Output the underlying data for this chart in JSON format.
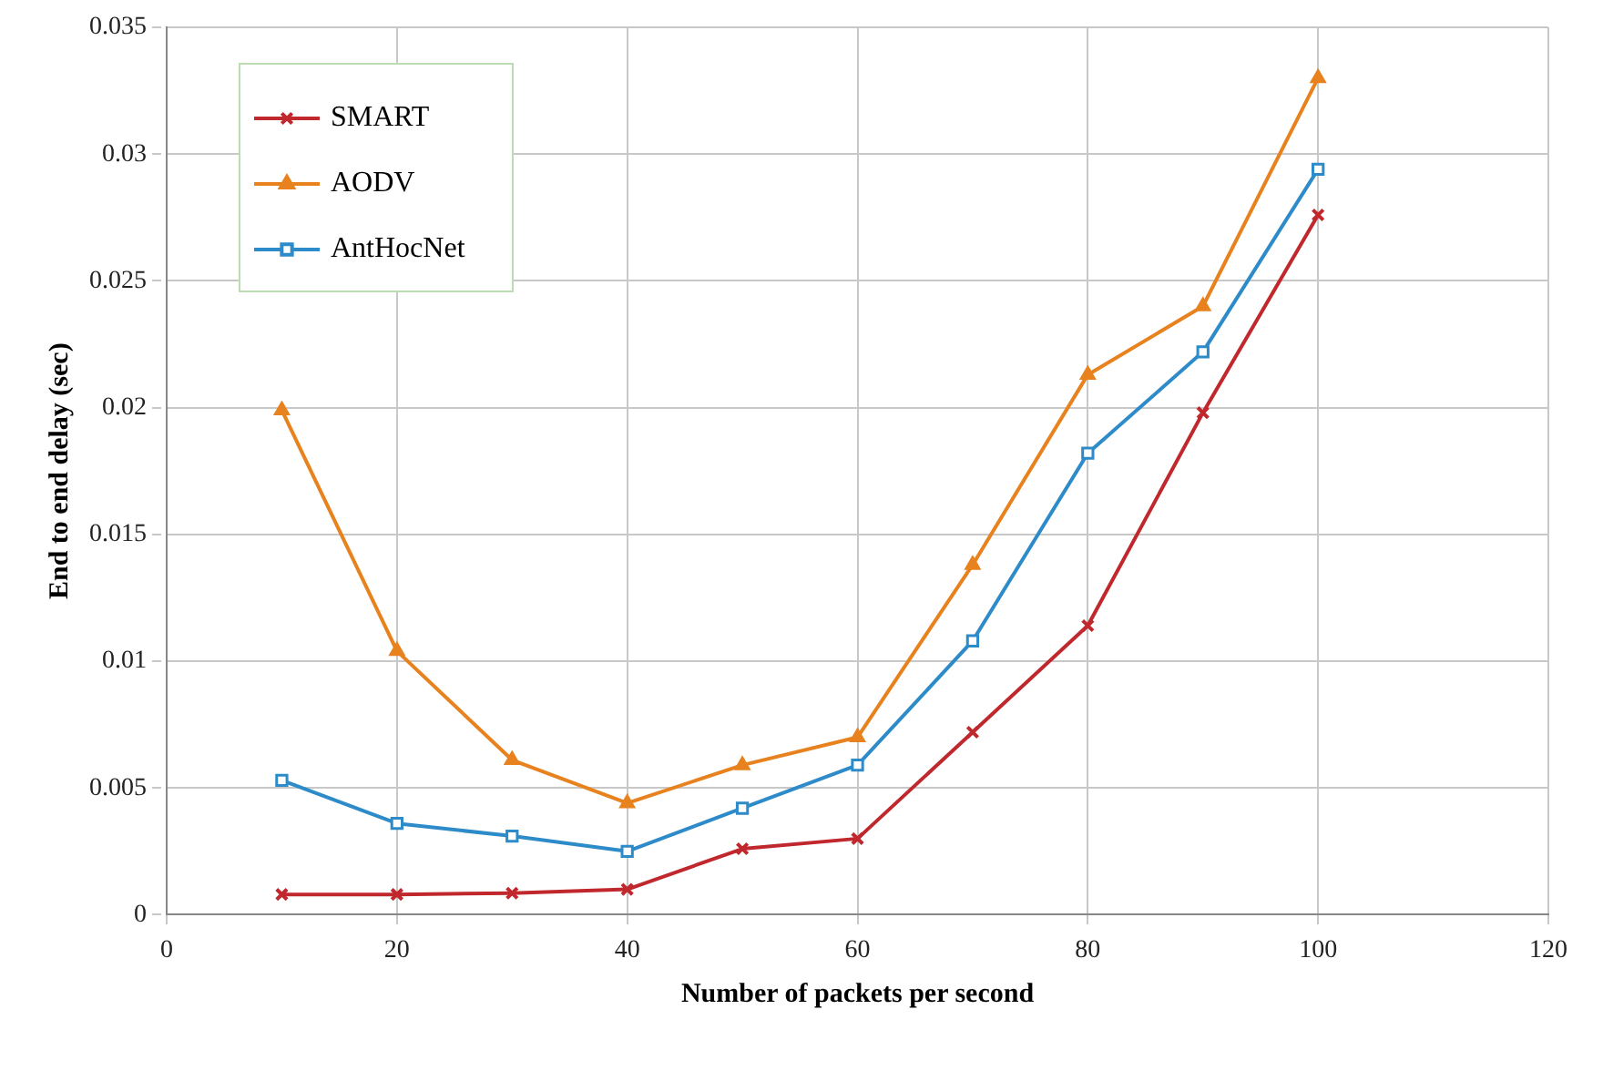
{
  "chart_data": {
    "type": "line",
    "xlabel": "Number of packets per second",
    "ylabel": "End to end delay (sec)",
    "x": [
      10,
      20,
      30,
      40,
      50,
      60,
      70,
      80,
      90,
      100
    ],
    "series": [
      {
        "name": "SMART",
        "color": "#c0282d",
        "marker": "cross",
        "values": [
          0.0008,
          0.0008,
          0.00085,
          0.001,
          0.0026,
          0.003,
          0.0072,
          0.0114,
          0.0198,
          0.0276
        ]
      },
      {
        "name": "AODV",
        "color": "#e8821e",
        "marker": "triangle",
        "values": [
          0.0199,
          0.0104,
          0.0061,
          0.0044,
          0.0059,
          0.007,
          0.0138,
          0.0213,
          0.024,
          0.033
        ]
      },
      {
        "name": "AntHocNet",
        "color": "#2e8bc9",
        "marker": "square",
        "values": [
          0.0053,
          0.0036,
          0.0031,
          0.0025,
          0.0042,
          0.0059,
          0.0108,
          0.0182,
          0.0222,
          0.0294
        ]
      }
    ],
    "xlim": [
      0,
      120
    ],
    "xticks": [
      0,
      20,
      40,
      60,
      80,
      100,
      120
    ],
    "ylim": [
      0,
      0.035
    ],
    "yticks": [
      0,
      0.005,
      0.01,
      0.015,
      0.02,
      0.025,
      0.03,
      0.035
    ],
    "grid": true,
    "legend": "top left",
    "line_style": "solid"
  }
}
